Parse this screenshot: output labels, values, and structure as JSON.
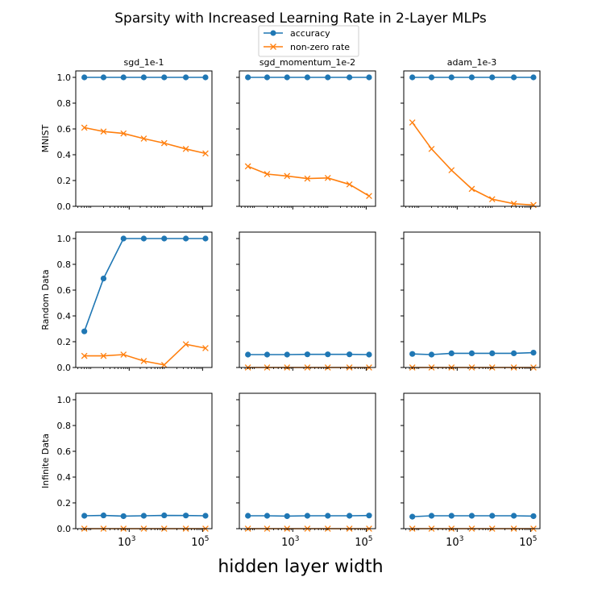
{
  "figure": {
    "title": "Sparsity with Increased Learning Rate in 2-Layer MLPs",
    "xlabel": "hidden layer width"
  },
  "legend": {
    "placement": "top-center",
    "entries": [
      {
        "label": "accuracy",
        "color": "#1f77b4",
        "marker": "circle"
      },
      {
        "label": "non-zero rate",
        "color": "#ff7f0e",
        "marker": "x"
      }
    ]
  },
  "chart_data": {
    "type": "line",
    "x_scale": "log",
    "x": [
      60,
      200,
      700,
      2500,
      9000,
      35000,
      120000
    ],
    "xticks": [
      {
        "value": 1000,
        "base": "10",
        "exp": "3"
      },
      {
        "value": 100000,
        "base": "10",
        "exp": "5"
      }
    ],
    "yticks": [
      "0.0",
      "0.2",
      "0.4",
      "0.6",
      "0.8",
      "1.0"
    ],
    "ylim": [
      0,
      1.05
    ],
    "columns": [
      "sgd_1e-1",
      "sgd_momentum_1e-2",
      "adam_1e-3"
    ],
    "rows": [
      "MNIST",
      "Random Data",
      "Infinite Data"
    ],
    "panels": [
      {
        "row": 0,
        "col": 0,
        "series": [
          {
            "name": "accuracy",
            "values": [
              1.0,
              1.0,
              1.0,
              1.0,
              1.0,
              1.0,
              1.0
            ]
          },
          {
            "name": "non-zero rate",
            "values": [
              0.61,
              0.58,
              0.565,
              0.525,
              0.49,
              0.445,
              0.41
            ]
          }
        ]
      },
      {
        "row": 0,
        "col": 1,
        "series": [
          {
            "name": "accuracy",
            "values": [
              1.0,
              1.0,
              1.0,
              1.0,
              1.0,
              1.0,
              1.0
            ]
          },
          {
            "name": "non-zero rate",
            "values": [
              0.31,
              0.25,
              0.235,
              0.215,
              0.22,
              0.17,
              0.08
            ]
          }
        ]
      },
      {
        "row": 0,
        "col": 2,
        "series": [
          {
            "name": "accuracy",
            "values": [
              1.0,
              1.0,
              1.0,
              1.0,
              1.0,
              1.0,
              1.0
            ]
          },
          {
            "name": "non-zero rate",
            "values": [
              0.65,
              0.445,
              0.28,
              0.135,
              0.055,
              0.02,
              0.01
            ]
          }
        ]
      },
      {
        "row": 1,
        "col": 0,
        "series": [
          {
            "name": "accuracy",
            "values": [
              0.28,
              0.69,
              1.0,
              1.0,
              1.0,
              1.0,
              1.0
            ]
          },
          {
            "name": "non-zero rate",
            "values": [
              0.09,
              0.09,
              0.1,
              0.05,
              0.02,
              0.18,
              0.15
            ]
          }
        ]
      },
      {
        "row": 1,
        "col": 1,
        "series": [
          {
            "name": "accuracy",
            "values": [
              0.1,
              0.1,
              0.1,
              0.102,
              0.102,
              0.102,
              0.1
            ]
          },
          {
            "name": "non-zero rate",
            "values": [
              0.0,
              0.0,
              0.0,
              0.0,
              0.0,
              0.0,
              0.0
            ]
          }
        ]
      },
      {
        "row": 1,
        "col": 2,
        "series": [
          {
            "name": "accuracy",
            "values": [
              0.105,
              0.1,
              0.11,
              0.11,
              0.11,
              0.11,
              0.115
            ]
          },
          {
            "name": "non-zero rate",
            "values": [
              0.0,
              0.0,
              0.0,
              0.0,
              0.0,
              0.0,
              0.0
            ]
          }
        ]
      },
      {
        "row": 2,
        "col": 0,
        "series": [
          {
            "name": "accuracy",
            "values": [
              0.1,
              0.103,
              0.097,
              0.1,
              0.103,
              0.102,
              0.1
            ]
          },
          {
            "name": "non-zero rate",
            "values": [
              0.0,
              0.0,
              0.0,
              0.0,
              0.0,
              0.0,
              0.0
            ]
          }
        ]
      },
      {
        "row": 2,
        "col": 1,
        "series": [
          {
            "name": "accuracy",
            "values": [
              0.1,
              0.1,
              0.097,
              0.1,
              0.1,
              0.1,
              0.102
            ]
          },
          {
            "name": "non-zero rate",
            "values": [
              0.0,
              0.0,
              0.0,
              0.0,
              0.0,
              0.0,
              0.0
            ]
          }
        ]
      },
      {
        "row": 2,
        "col": 2,
        "series": [
          {
            "name": "accuracy",
            "values": [
              0.093,
              0.1,
              0.1,
              0.1,
              0.1,
              0.1,
              0.097
            ]
          },
          {
            "name": "non-zero rate",
            "values": [
              0.0,
              0.0,
              0.0,
              0.0,
              0.0,
              0.0,
              0.0
            ]
          }
        ]
      }
    ]
  }
}
